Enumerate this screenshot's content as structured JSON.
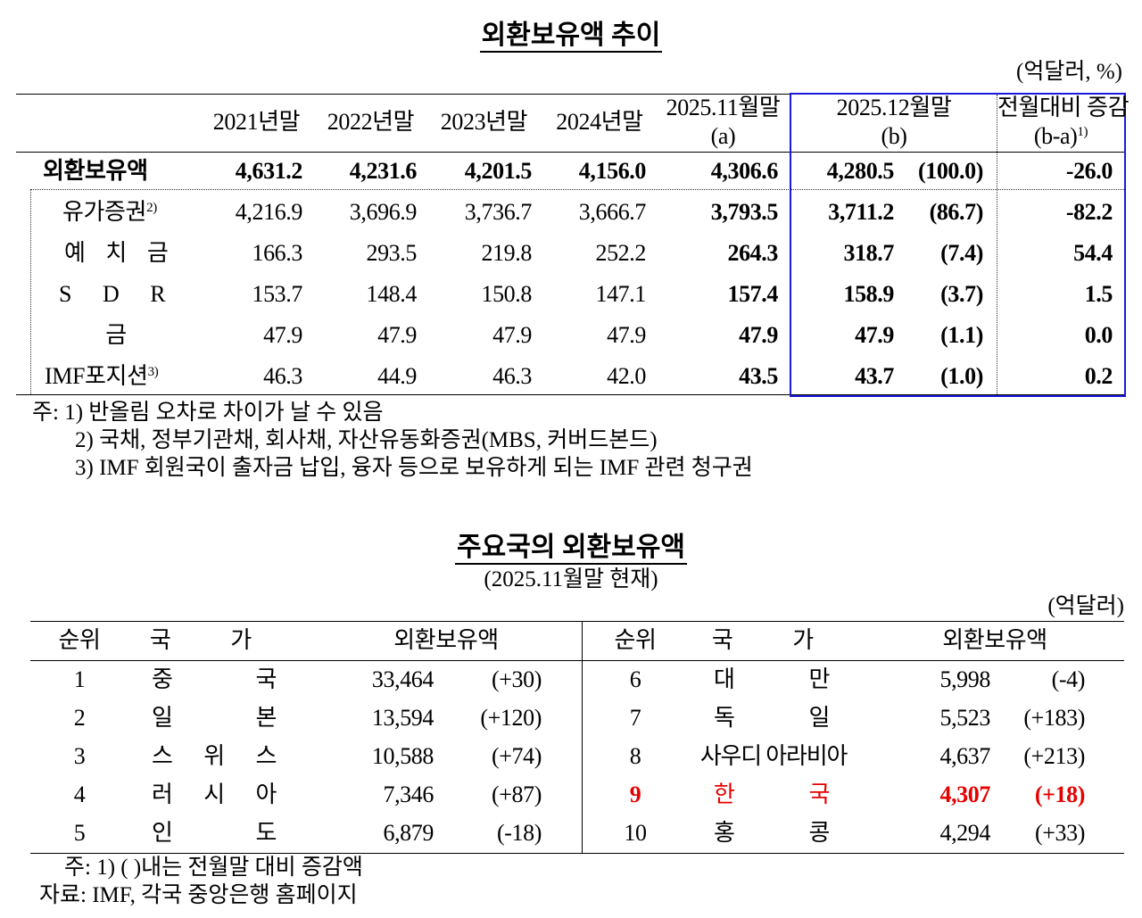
{
  "title1": "외환보유액 추이",
  "unit1": "(억달러, %)",
  "t1_headers": {
    "y2021": "2021년말",
    "y2022": "2022년말",
    "y2023": "2023년말",
    "y2024": "2024년말",
    "nov_line1": "2025.11월말",
    "nov_line2": "(a)",
    "dec_line1": "2025.12월말",
    "dec_line2": "(b)",
    "chg_line1": "전월대비 증감",
    "chg_line2": "(b-a)",
    "chg_sup": "1)"
  },
  "t1_rows": [
    {
      "label": "외환보유액",
      "sup": "",
      "y2021": "4,631.2",
      "y2022": "4,231.6",
      "y2023": "4,201.5",
      "y2024": "4,156.0",
      "nov": "4,306.6",
      "dec": "4,280.5",
      "share": "(100.0)",
      "chg": "-26.0"
    },
    {
      "label": "유가증권",
      "sup": "2)",
      "y2021": "4,216.9",
      "y2022": "3,696.9",
      "y2023": "3,736.7",
      "y2024": "3,666.7",
      "nov": "3,793.5",
      "dec": "3,711.2",
      "share": "(86.7)",
      "chg": "-82.2"
    },
    {
      "label": "예 치 금",
      "sup": "",
      "y2021": "166.3",
      "y2022": "293.5",
      "y2023": "219.8",
      "y2024": "252.2",
      "nov": "264.3",
      "dec": "318.7",
      "share": "(7.4)",
      "chg": "54.4"
    },
    {
      "label": "S D R",
      "sup": "",
      "y2021": "153.7",
      "y2022": "148.4",
      "y2023": "150.8",
      "y2024": "147.1",
      "nov": "157.4",
      "dec": "158.9",
      "share": "(3.7)",
      "chg": "1.5"
    },
    {
      "label": "금",
      "sup": "",
      "y2021": "47.9",
      "y2022": "47.9",
      "y2023": "47.9",
      "y2024": "47.9",
      "nov": "47.9",
      "dec": "47.9",
      "share": "(1.1)",
      "chg": "0.0"
    },
    {
      "label": "IMF포지션",
      "sup": "3)",
      "y2021": "46.3",
      "y2022": "44.9",
      "y2023": "46.3",
      "y2024": "42.0",
      "nov": "43.5",
      "dec": "43.7",
      "share": "(1.0)",
      "chg": "0.2"
    }
  ],
  "notes1": [
    "주: 1) 반올림 오차로 차이가 날 수 있음",
    "2) 국채, 정부기관채, 회사채, 자산유동화증권(MBS, 커버드본드)",
    "3) IMF 회원국이 출자금 납입, 융자 등으로 보유하게 되는 IMF 관련 청구권"
  ],
  "title2": "주요국의 외환보유액",
  "subtitle2": "(2025.11월말 현재)",
  "unit2": "(억달러)",
  "t2_headers": {
    "rank": "순위",
    "country": "국 가",
    "reserves": "외환보유액"
  },
  "t2_left": [
    {
      "rank": "1",
      "country": "중 국",
      "amount": "33,464",
      "change": "(+30)"
    },
    {
      "rank": "2",
      "country": "일 본",
      "amount": "13,594",
      "change": "(+120)"
    },
    {
      "rank": "3",
      "country": "스 위 스",
      "amount": "10,588",
      "change": "(+74)"
    },
    {
      "rank": "4",
      "country": "러 시 아",
      "amount": "7,346",
      "change": "(+87)"
    },
    {
      "rank": "5",
      "country": "인 도",
      "amount": "6,879",
      "change": "(-18)"
    }
  ],
  "t2_right": [
    {
      "rank": "6",
      "country": "대 만",
      "amount": "5,998",
      "change": "(-4)"
    },
    {
      "rank": "7",
      "country": "독 일",
      "amount": "5,523",
      "change": "(+183)"
    },
    {
      "rank": "8",
      "country": "사우디 아라비아",
      "amount": "4,637",
      "change": "(+213)"
    },
    {
      "rank": "9",
      "country": "한 국",
      "amount": "4,307",
      "change": "(+18)"
    },
    {
      "rank": "10",
      "country": "홍 콩",
      "amount": "4,294",
      "change": "(+33)"
    }
  ],
  "notes2": [
    "주: 1) ( )내는 전월말 대비 증감액",
    "자료: IMF, 각국 중앙은행 홈페이지"
  ],
  "colors": {
    "highlight_box": "#1a1adb",
    "korea_highlight": "#e60000"
  }
}
